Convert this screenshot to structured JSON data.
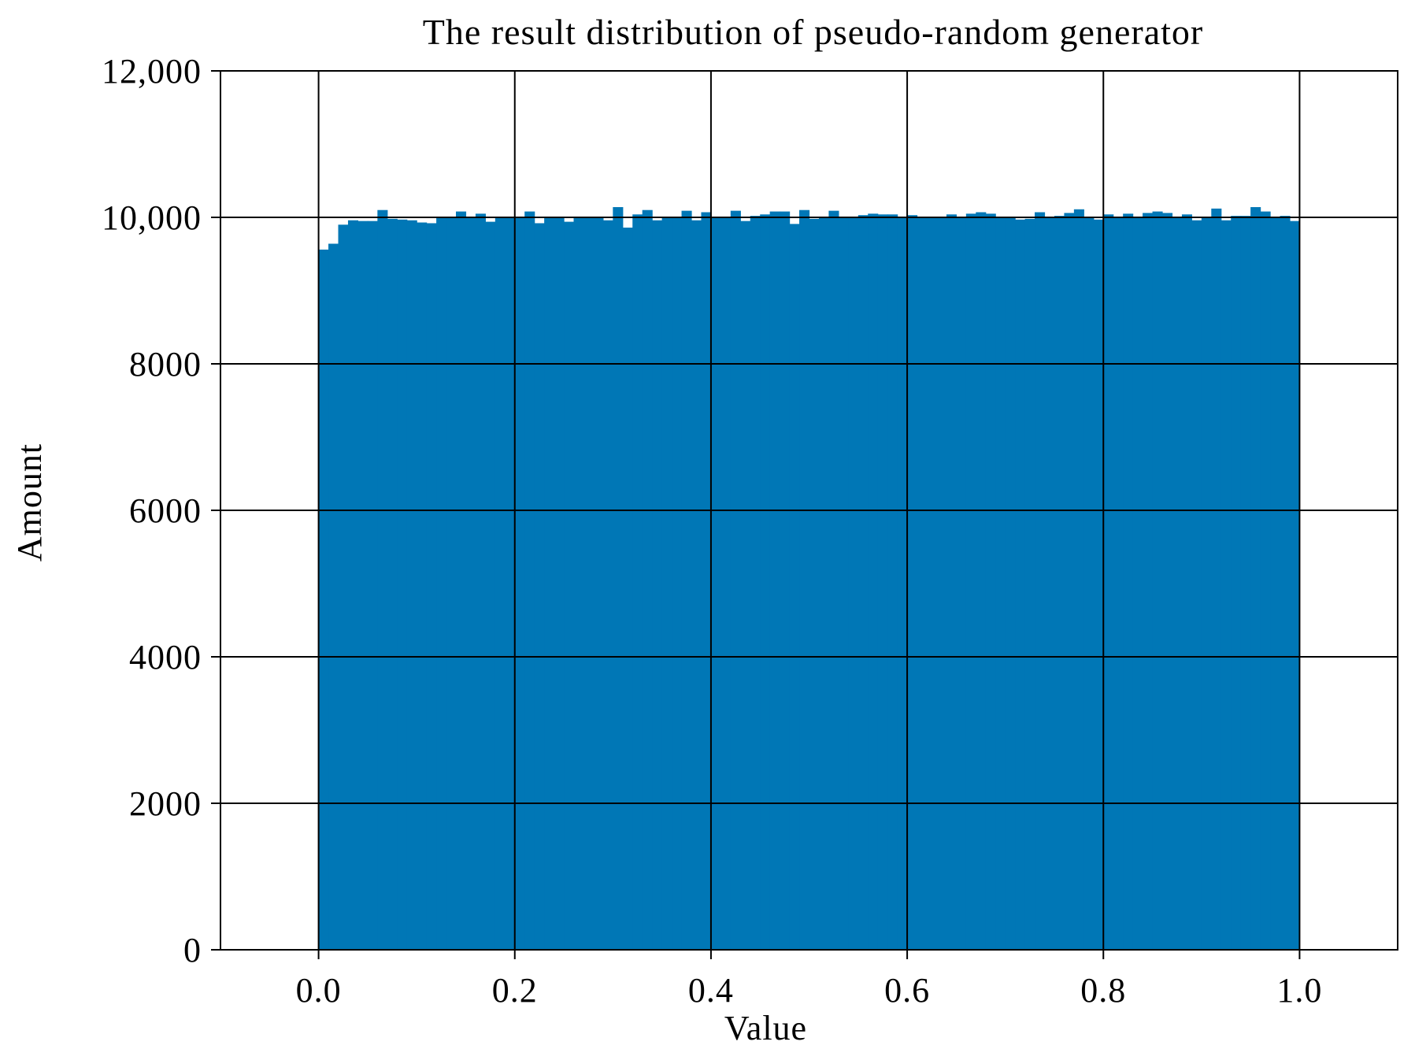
{
  "chart_data": {
    "type": "bar",
    "title": "The  result distribution of pseudo-random generator",
    "xlabel": "Value",
    "ylabel": "Amount",
    "xlim": [
      -0.1,
      1.1
    ],
    "ylim": [
      0,
      12000
    ],
    "xticks": [
      0.0,
      0.2,
      0.4,
      0.6,
      0.8,
      1.0
    ],
    "xtick_labels": [
      "0.0",
      "0.2",
      "0.4",
      "0.6",
      "0.8",
      "1.0"
    ],
    "yticks": [
      0,
      2000,
      4000,
      6000,
      8000,
      10000,
      12000
    ],
    "ytick_labels": [
      "0",
      "2000",
      "4000",
      "6000",
      "8000",
      "10,000",
      "12,000"
    ],
    "grid": true,
    "bar_color": "#0077b6",
    "bins": 100,
    "bin_start": 0.0,
    "bin_width": 0.01,
    "values": [
      9560,
      9640,
      9900,
      9960,
      9950,
      9950,
      10100,
      9980,
      9970,
      9960,
      9930,
      9920,
      9990,
      9990,
      10080,
      10000,
      10050,
      9940,
      9990,
      10000,
      9990,
      10080,
      9920,
      10010,
      10010,
      9940,
      9990,
      10000,
      9990,
      9960,
      10140,
      9860,
      10040,
      10100,
      9960,
      9990,
      10000,
      10090,
      9960,
      10070,
      9990,
      9990,
      10090,
      9950,
      10020,
      10040,
      10080,
      10080,
      9910,
      10100,
      9980,
      10000,
      10090,
      10010,
      10010,
      10030,
      10050,
      10040,
      10040,
      10000,
      10030,
      10000,
      10010,
      10000,
      10040,
      10000,
      10050,
      10070,
      10050,
      9990,
      9990,
      9970,
      9980,
      10070,
      9990,
      10020,
      10060,
      10110,
      9990,
      9970,
      10040,
      10010,
      10050,
      9990,
      10060,
      10080,
      10060,
      10000,
      10040,
      9960,
      10010,
      10120,
      9960,
      10020,
      10020,
      10140,
      10080,
      10000,
      10020,
      9950
    ]
  }
}
